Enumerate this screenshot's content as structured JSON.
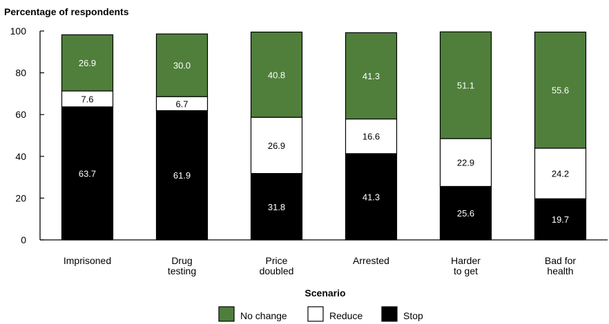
{
  "chart_data": {
    "type": "bar",
    "stacked": true,
    "ylabel": "Percentage of respondents",
    "xlabel": "Scenario",
    "ylim": [
      0,
      100
    ],
    "yticks": [
      0,
      20,
      40,
      60,
      80,
      100
    ],
    "grid": false,
    "legend_position": "bottom",
    "categories": [
      [
        "Imprisoned"
      ],
      [
        "Drug",
        "testing"
      ],
      [
        "Price",
        "doubled"
      ],
      [
        "Arrested"
      ],
      [
        "Harder",
        "to get"
      ],
      [
        "Bad for",
        "health"
      ]
    ],
    "series": [
      {
        "name": "Stop",
        "color": "#000000",
        "label_color": "#ffffff",
        "values": [
          63.7,
          61.9,
          31.8,
          41.3,
          25.6,
          19.7
        ],
        "labels": [
          "63.7",
          "61.9",
          "31.8",
          "41.3",
          "25.6",
          "19.7"
        ]
      },
      {
        "name": "Reduce",
        "color": "#ffffff",
        "label_color": "#000000",
        "values": [
          7.6,
          6.7,
          26.9,
          16.6,
          22.9,
          24.2
        ],
        "labels": [
          "7.6",
          "6.7",
          "26.9",
          "16.6",
          "22.9",
          "24.2"
        ]
      },
      {
        "name": "No change",
        "color": "#4f7f3b",
        "label_color": "#ffffff",
        "values": [
          26.9,
          30.0,
          40.8,
          41.3,
          51.1,
          55.6
        ],
        "labels": [
          "26.9",
          "30.0",
          "40.8",
          "41.3",
          "51.1",
          "55.6"
        ]
      }
    ],
    "legend": [
      {
        "name": "No change",
        "color": "#4f7f3b"
      },
      {
        "name": "Reduce",
        "color": "#ffffff"
      },
      {
        "name": "Stop",
        "color": "#000000"
      }
    ]
  }
}
